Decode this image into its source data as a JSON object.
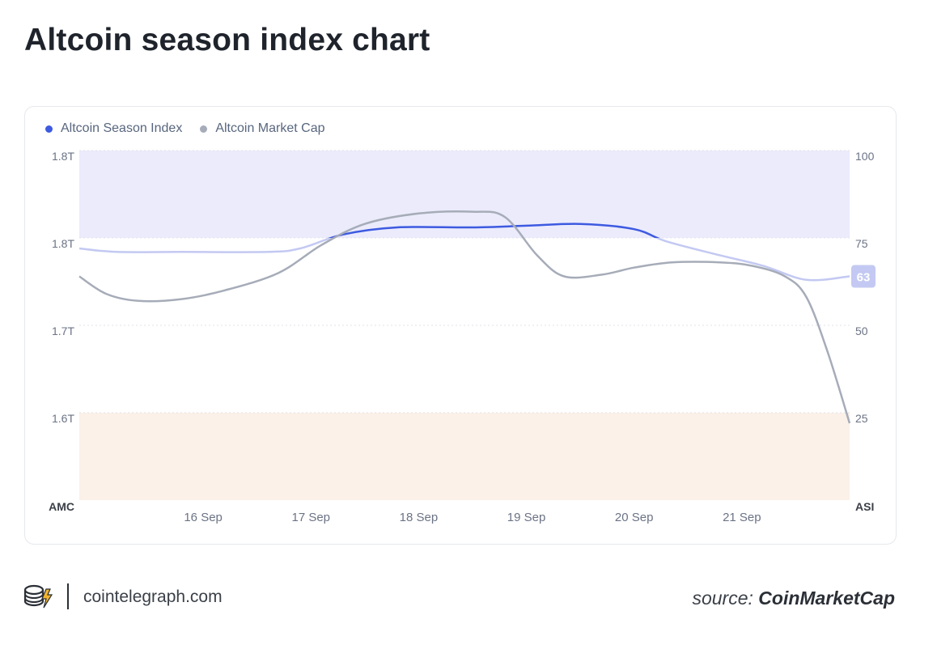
{
  "title": "Altcoin season index chart",
  "legend": [
    {
      "label": "Altcoin Season Index",
      "color": "#3d5ae0"
    },
    {
      "label": "Altcoin Market Cap",
      "color": "#a6acb8"
    }
  ],
  "footer": {
    "site": "cointelegraph.com",
    "source_prefix": "source:",
    "source_name": "CoinMarketCap"
  },
  "chart_data": {
    "type": "line",
    "x_ticks": [
      "16 Sep",
      "17 Sep",
      "18 Sep",
      "19 Sep",
      "20 Sep",
      "21 Sep"
    ],
    "x_domain": [
      15.35,
      22.5
    ],
    "left_axis": {
      "title": "AMC",
      "ticks": [
        {
          "label": "1.8T",
          "level": 100
        },
        {
          "label": "1.8T",
          "level": 75
        },
        {
          "label": "1.7T",
          "level": 50
        },
        {
          "label": "1.6T",
          "level": 25
        }
      ]
    },
    "right_axis": {
      "title": "ASI",
      "ylim": [
        0,
        100
      ],
      "ticks": [
        100,
        75,
        50,
        25
      ]
    },
    "bands": [
      {
        "from": 75,
        "to": 100,
        "color": "#ebebfc"
      },
      {
        "from": 0,
        "to": 25,
        "color": "#fbf1e8"
      }
    ],
    "current_value_label": "63",
    "series": [
      {
        "name": "Altcoin Season Index",
        "axis": "right",
        "color": "#3d5ae0",
        "color_below_75": "#c3c9f2",
        "points": [
          [
            15.35,
            72
          ],
          [
            15.7,
            71
          ],
          [
            16.3,
            71
          ],
          [
            17.1,
            71
          ],
          [
            17.4,
            72
          ],
          [
            17.8,
            76
          ],
          [
            18.3,
            78
          ],
          [
            19.0,
            78
          ],
          [
            19.5,
            78.5
          ],
          [
            20.0,
            79
          ],
          [
            20.5,
            77.5
          ],
          [
            20.8,
            74
          ],
          [
            21.3,
            70
          ],
          [
            21.7,
            67
          ],
          [
            22.1,
            63
          ],
          [
            22.5,
            64
          ]
        ]
      },
      {
        "name": "Altcoin Market Cap",
        "axis": "left",
        "color": "#a6acb8",
        "points": [
          [
            15.35,
            64
          ],
          [
            15.6,
            59
          ],
          [
            15.9,
            57
          ],
          [
            16.3,
            57.5
          ],
          [
            16.7,
            60
          ],
          [
            17.2,
            65
          ],
          [
            17.6,
            73
          ],
          [
            18.0,
            79
          ],
          [
            18.5,
            82
          ],
          [
            19.0,
            82.5
          ],
          [
            19.3,
            81
          ],
          [
            19.6,
            70
          ],
          [
            19.85,
            64
          ],
          [
            20.2,
            64.5
          ],
          [
            20.5,
            66.5
          ],
          [
            20.85,
            68
          ],
          [
            21.3,
            68
          ],
          [
            21.6,
            67
          ],
          [
            21.9,
            64
          ],
          [
            22.1,
            58
          ],
          [
            22.3,
            42
          ],
          [
            22.5,
            22
          ]
        ]
      }
    ]
  }
}
